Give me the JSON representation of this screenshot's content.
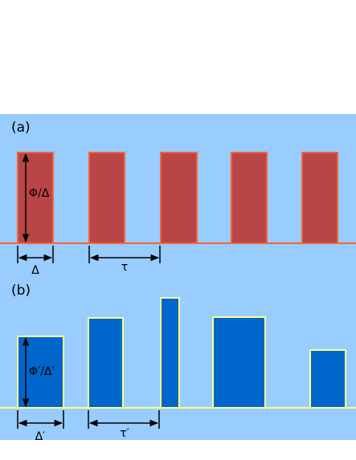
{
  "panel_a": {
    "label": "(a)",
    "height_label": "Φ/Δ",
    "width_label": "Δ",
    "period_label": "τ"
  },
  "panel_b": {
    "label": "(b)",
    "height_label": "Φ′/Δ′",
    "width_label": "Δ′",
    "period_label": "τ′"
  }
}
